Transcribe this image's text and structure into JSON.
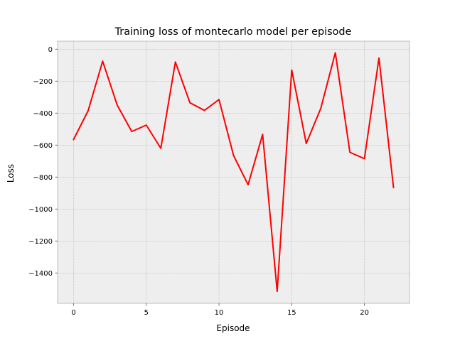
{
  "chart_data": {
    "type": "line",
    "title": "Training loss of montecarlo model per episode",
    "xlabel": "Episode",
    "ylabel": "Loss",
    "xlim": [
      -1.1,
      23.1
    ],
    "ylim": [
      -1590,
      50
    ],
    "xticks": [
      0,
      5,
      10,
      15,
      20
    ],
    "yticks": [
      0,
      -200,
      -400,
      -600,
      -800,
      -1000,
      -1200,
      -1400
    ],
    "grid": true,
    "series": [
      {
        "color": "#ff0000",
        "x": [
          0,
          1,
          2,
          3,
          4,
          5,
          6,
          7,
          8,
          9,
          10,
          11,
          12,
          13,
          14,
          15,
          16,
          17,
          18,
          19,
          20,
          21,
          22
        ],
        "values": [
          -565,
          -385,
          -75,
          -350,
          -515,
          -475,
          -620,
          -80,
          -335,
          -383,
          -315,
          -665,
          -848,
          -533,
          -1515,
          -130,
          -590,
          -370,
          -22,
          -645,
          -685,
          -55,
          -865
        ]
      }
    ]
  }
}
